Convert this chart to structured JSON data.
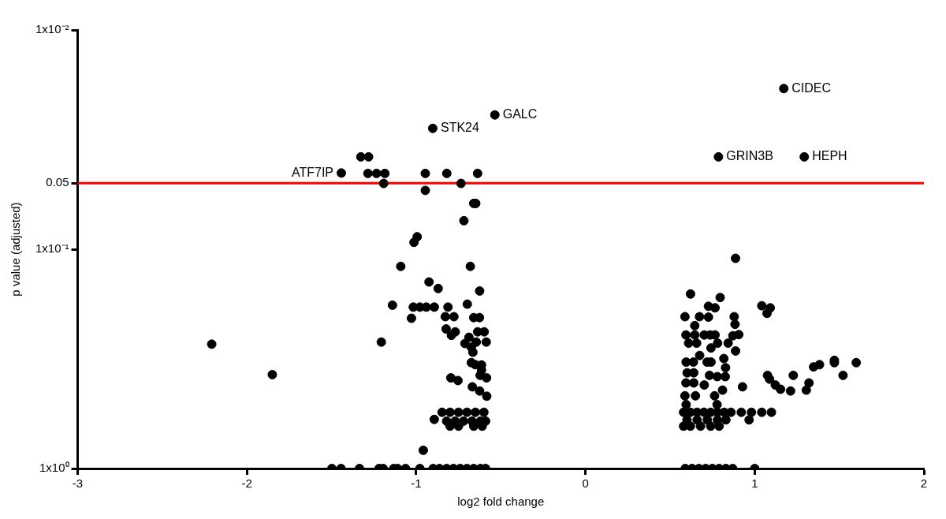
{
  "chart_data": {
    "type": "scatter",
    "xlabel": "log2 fold change",
    "ylabel": "p value (adjusted)",
    "xlim": [
      -3,
      2
    ],
    "xticks": [
      -3,
      -2,
      -1,
      0,
      1,
      2
    ],
    "ylim": [
      1,
      0.01
    ],
    "yticks": [
      {
        "value": 0.01,
        "label": "1x10⁻²"
      },
      {
        "value": 0.05,
        "label": "0.05"
      },
      {
        "value": 0.1,
        "label": "1x10⁻¹"
      },
      {
        "value": 1,
        "label": "1x10⁰"
      }
    ],
    "log": "y",
    "grid": false,
    "legend": false,
    "marker": "circle",
    "ref_lines": [
      {
        "axis": "y",
        "value": 0.05,
        "color": "#ff0000",
        "line_style": "solid"
      }
    ],
    "annotations": [
      {
        "text": "CIDEC",
        "x": 1.172,
        "y": 0.0185
      },
      {
        "text": "HEPH",
        "x": 1.293,
        "y": 0.0379
      },
      {
        "text": "GRIN3B",
        "x": 0.786,
        "y": 0.0379
      },
      {
        "text": "GALC",
        "x": -0.535,
        "y": 0.0244
      },
      {
        "text": "STK24",
        "x": -0.902,
        "y": 0.0281
      },
      {
        "text": "ATF7IP",
        "x": -1.442,
        "y": 0.0449
      }
    ],
    "series": [
      {
        "color": "#000000",
        "x": [
          1.172,
          1.293,
          0.786,
          -0.535,
          -0.902,
          -1.442,
          -1.327,
          -1.281,
          -1.285,
          -1.234,
          -1.185,
          -0.946,
          -0.819,
          -0.637,
          -1.192,
          -0.735,
          -0.946,
          -0.66,
          -0.648,
          -0.718,
          -0.994,
          -1.013,
          -1.091,
          -0.68,
          -0.924,
          -0.87,
          -0.625,
          -1.14,
          -0.698,
          -1.017,
          -0.978,
          -0.94,
          -0.893,
          -0.812,
          -1.028,
          -0.828,
          -0.777,
          -0.66,
          -0.626,
          -0.823,
          -0.769,
          -0.792,
          -0.688,
          -0.637,
          -0.598,
          -0.645,
          -0.586,
          -1.206,
          -0.712,
          -0.674,
          -0.665,
          -2.208,
          -0.674,
          -0.651,
          -0.614,
          -0.614,
          -0.622,
          -0.584,
          -0.795,
          -0.753,
          -1.85,
          -0.668,
          -0.625,
          -0.583,
          -0.847,
          -0.8,
          -0.75,
          -0.7,
          -0.65,
          -0.6,
          -0.82,
          -0.77,
          -0.72,
          -0.67,
          -0.62,
          -0.59,
          -0.8,
          -0.75,
          -0.66,
          -0.61,
          -0.893,
          -0.958,
          -1.498,
          -1.444,
          -1.335,
          -1.219,
          -1.195,
          -1.133,
          -1.11,
          -1.063,
          -0.978,
          -0.9,
          -0.862,
          -0.82,
          -0.78,
          -0.74,
          -0.7,
          -0.66,
          -0.62,
          -0.59,
          0.887,
          0.621,
          0.796,
          0.727,
          0.766,
          1.042,
          1.092,
          1.073,
          0.588,
          0.674,
          0.727,
          0.646,
          0.879,
          0.884,
          0.594,
          0.646,
          0.702,
          0.737,
          0.766,
          0.871,
          0.906,
          0.61,
          0.657,
          0.781,
          0.843,
          0.742,
          0.887,
          0.675,
          0.818,
          0.595,
          0.638,
          0.719,
          0.742,
          0.828,
          0.601,
          0.64,
          0.733,
          0.779,
          0.826,
          0.594,
          0.64,
          0.702,
          0.81,
          0.588,
          0.65,
          0.763,
          0.928,
          1.076,
          1.088,
          1.122,
          1.153,
          1.212,
          1.228,
          1.305,
          1.321,
          1.348,
          1.383,
          1.471,
          1.471,
          1.6,
          1.522,
          0.595,
          0.778,
          0.58,
          0.62,
          0.66,
          0.7,
          0.74,
          0.78,
          0.82,
          0.86,
          0.921,
          0.981,
          1.042,
          1.099,
          0.967,
          0.6,
          0.66,
          0.72,
          0.78,
          0.83,
          0.58,
          0.62,
          0.68,
          0.74,
          0.79,
          0.59,
          0.63,
          0.67,
          0.71,
          0.75,
          0.79,
          0.83,
          0.87,
          1.0
        ],
        "values": [
          0.0185,
          0.0379,
          0.0379,
          0.0244,
          0.0281,
          0.0449,
          0.0379,
          0.0379,
          0.0451,
          0.0451,
          0.0451,
          0.0451,
          0.0451,
          0.0451,
          0.0501,
          0.0501,
          0.0539,
          0.0618,
          0.0618,
          0.0741,
          0.0877,
          0.093,
          0.1197,
          0.1197,
          0.141,
          0.151,
          0.155,
          0.18,
          0.178,
          0.1836,
          0.1836,
          0.1836,
          0.1836,
          0.1836,
          0.2064,
          0.203,
          0.203,
          0.205,
          0.205,
          0.231,
          0.238,
          0.247,
          0.252,
          0.238,
          0.238,
          0.265,
          0.265,
          0.265,
          0.269,
          0.28,
          0.295,
          0.271,
          0.329,
          0.336,
          0.337,
          0.356,
          0.376,
          0.386,
          0.386,
          0.397,
          0.373,
          0.424,
          0.443,
          0.468,
          0.554,
          0.554,
          0.554,
          0.554,
          0.554,
          0.554,
          0.608,
          0.608,
          0.608,
          0.608,
          0.608,
          0.608,
          0.641,
          0.641,
          0.641,
          0.641,
          0.597,
          0.826,
          1,
          1,
          1,
          1,
          1,
          1,
          1,
          1,
          1,
          1,
          1,
          1,
          1,
          1,
          1,
          1,
          1,
          1,
          0.11,
          0.16,
          0.166,
          0.182,
          0.185,
          0.181,
          0.185,
          0.196,
          0.203,
          0.203,
          0.204,
          0.223,
          0.203,
          0.22,
          0.246,
          0.246,
          0.246,
          0.246,
          0.246,
          0.248,
          0.245,
          0.268,
          0.268,
          0.268,
          0.268,
          0.282,
          0.291,
          0.305,
          0.315,
          0.327,
          0.327,
          0.327,
          0.327,
          0.347,
          0.366,
          0.366,
          0.376,
          0.381,
          0.381,
          0.407,
          0.407,
          0.416,
          0.439,
          0.466,
          0.466,
          0.466,
          0.424,
          0.376,
          0.391,
          0.416,
          0.435,
          0.443,
          0.376,
          0.439,
          0.407,
          0.344,
          0.336,
          0.321,
          0.329,
          0.329,
          0.376,
          0.511,
          0.511,
          0.554,
          0.554,
          0.554,
          0.554,
          0.554,
          0.554,
          0.554,
          0.554,
          0.554,
          0.554,
          0.554,
          0.554,
          0.6,
          0.6,
          0.6,
          0.6,
          0.6,
          0.6,
          0.641,
          0.641,
          0.641,
          0.641,
          0.641,
          1,
          1,
          1,
          1,
          1,
          1,
          1,
          1,
          1
        ]
      }
    ]
  }
}
